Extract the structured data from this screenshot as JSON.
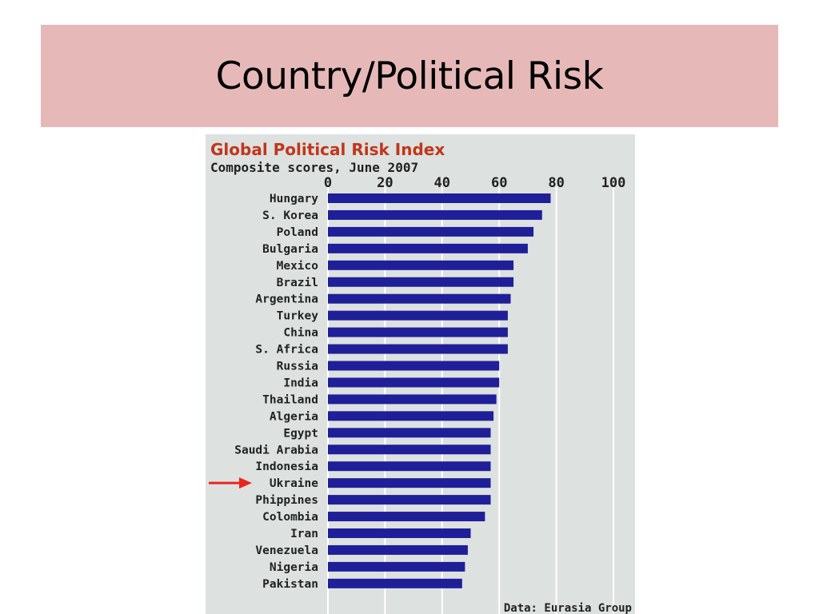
{
  "slide": {
    "title": "Country/Political Risk"
  },
  "colors": {
    "title_band": "#e6b9b8",
    "chart_background": "#dde1e0",
    "bar": "#1f1f99",
    "chart_title": "#c0361a",
    "arrow": "#e8261e"
  },
  "chart_data": {
    "type": "bar",
    "orientation": "horizontal",
    "title": "Global Political Risk Index",
    "subtitle": "Composite scores, June 2007",
    "source": "Data: Eurasia Group",
    "xlim": [
      0,
      100
    ],
    "xticks": [
      0,
      20,
      40,
      60,
      80,
      100
    ],
    "grid": true,
    "highlighted_category": "Ukraine",
    "categories": [
      "Hungary",
      "S. Korea",
      "Poland",
      "Bulgaria",
      "Mexico",
      "Brazil",
      "Argentina",
      "Turkey",
      "China",
      "S. Africa",
      "Russia",
      "India",
      "Thailand",
      "Algeria",
      "Egypt",
      "Saudi Arabia",
      "Indonesia",
      "Ukraine",
      "Phippines",
      "Colombia",
      "Iran",
      "Venezuela",
      "Nigeria",
      "Pakistan"
    ],
    "values": [
      78,
      75,
      72,
      70,
      65,
      65,
      64,
      63,
      63,
      63,
      60,
      60,
      59,
      58,
      57,
      57,
      57,
      57,
      57,
      55,
      50,
      49,
      48,
      47
    ]
  }
}
